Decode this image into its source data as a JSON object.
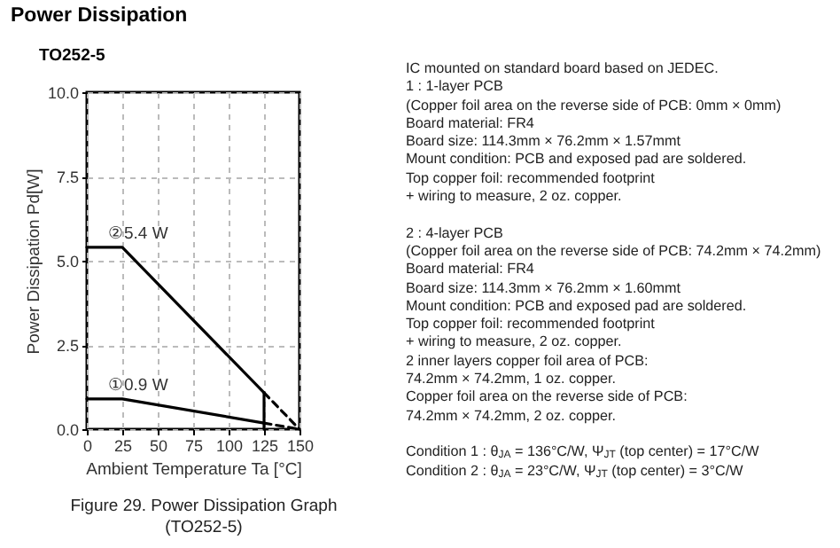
{
  "chart_data": {
    "type": "line",
    "title": "Power Dissipation",
    "subtitle": "TO252-5",
    "xlabel": "Ambient Temperature Ta [°C]",
    "ylabel": "Power Dissipation Pd[W]",
    "series": [
      {
        "color": "#000000",
        "x": [
          0,
          25,
          125
        ],
        "values": [
          5.4,
          5.4,
          1.08
        ]
      },
      {
        "color": "#000000",
        "x": [
          125,
          150
        ],
        "values": [
          1.08,
          0
        ],
        "line_style": "dashed"
      },
      {
        "color": "#000000",
        "x": [
          0,
          25,
          125
        ],
        "values": [
          0.9,
          0.9,
          0.18
        ]
      },
      {
        "color": "#000000",
        "x": [
          125,
          150
        ],
        "values": [
          0.18,
          0
        ],
        "line_style": "dashed"
      },
      {
        "color": "#000000",
        "x": [
          125,
          125
        ],
        "values": [
          0,
          1.08
        ]
      }
    ],
    "xlim": [
      0,
      150
    ],
    "xticks": [
      0,
      25,
      50,
      75,
      100,
      125,
      150
    ],
    "ylim": [
      0,
      10
    ],
    "yticks": [
      {
        "value": 0,
        "label": "0.0"
      },
      {
        "value": 2.5,
        "label": "2.5"
      },
      {
        "value": 5,
        "label": "5.0"
      },
      {
        "value": 7.5,
        "label": "7.5"
      },
      {
        "value": 10,
        "label": "10.0"
      }
    ],
    "grid": true,
    "marker": "none",
    "annotations": [
      {
        "text": "②5.4 W",
        "x": 0,
        "y": 5.4
      },
      {
        "text": "①0.9 W",
        "x": 0,
        "y": 0.9
      },
      "Figure 29. Power Dissipation Graph",
      "(TO252-5)",
      "IC mounted on standard board based on JEDEC.",
      "1 : 1-layer PCB",
      "(Copper foil area on the reverse side of PCB: 0mm × 0mm)",
      "Board material: FR4",
      "Board size: 114.3mm × 76.2mm × 1.57mmt",
      "Mount condition: PCB and exposed pad are soldered.",
      "Top copper foil: recommended footprint",
      "+ wiring to measure, 2 oz. copper.",
      "2 : 4-layer PCB",
      "(Copper foil area on the reverse side of PCB: 74.2mm × 74.2mm)",
      "Board material: FR4",
      "Board size: 114.3mm × 76.2mm × 1.60mmt",
      "Mount condition: PCB and exposed pad are soldered.",
      "Top copper foil: recommended footprint",
      "+ wiring to measure, 2 oz. copper.",
      "2 inner layers copper foil area of PCB:",
      "74.2mm × 74.2mm, 1 oz. copper.",
      "Copper foil area on the reverse side of PCB:",
      "74.2mm × 74.2mm, 2 oz. copper.",
      "Condition 1 : θ$_{JA}$ = 136°C/W, Ψ$_{JT}$ (top center) = 17°C/W",
      "Condition 2 : θ$_{JA}$ = 23°C/W, Ψ$_{JT}$ (top center) = 3°C/W"
    ]
  }
}
